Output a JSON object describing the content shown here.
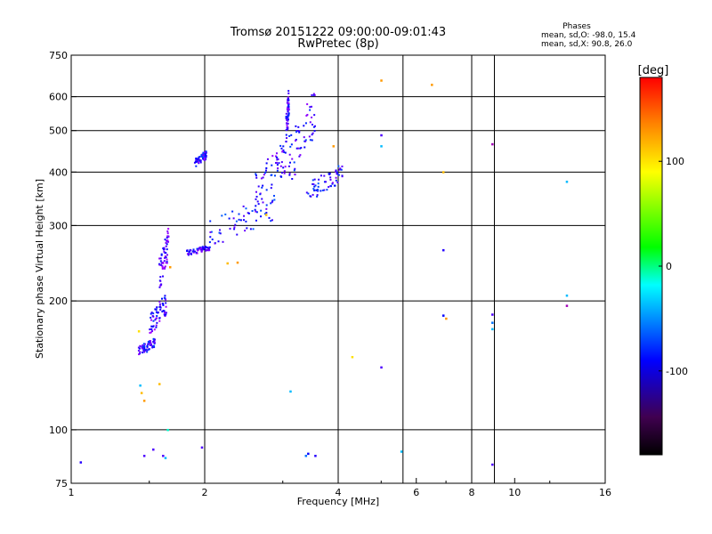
{
  "chart_data": {
    "type": "scatter",
    "title": "Tromsø 20151222 09:00:00-09:01:43",
    "subtitle": "RwPretec (8p)",
    "xlabel": "Frequency [MHz]",
    "ylabel": "Stationary phase Virtual Height [km]",
    "x_scale": "log2",
    "y_scale": "log",
    "xlim": [
      1,
      16
    ],
    "ylim": [
      75,
      750
    ],
    "x_ticks": [
      1,
      2,
      4,
      6,
      8,
      10,
      16
    ],
    "x_tick_labels": [
      "1",
      "2",
      "4",
      "6",
      "8",
      "10",
      "16"
    ],
    "y_ticks": [
      75,
      100,
      200,
      300,
      400,
      500,
      600,
      750
    ],
    "y_tick_labels": [
      "75",
      "100",
      "200",
      "300",
      "400",
      "500",
      "600",
      "750"
    ],
    "x_grid": [
      2,
      4,
      5.6,
      8,
      9
    ],
    "y_grid": [
      100,
      200,
      300,
      400,
      500,
      600
    ],
    "legend": {
      "title": "Phases",
      "line1": "mean, sd,O:  -98.0, 15.4",
      "line2": "mean, sd,X:   90.8, 26.0"
    },
    "colorbar": {
      "label": "[deg]",
      "range": [
        -180,
        180
      ],
      "ticks": [
        100,
        0,
        -100
      ],
      "tick_labels": [
        "100",
        "0",
        "-100"
      ]
    },
    "traces": [
      {
        "x": [
          1.42,
          1.55
        ],
        "y": [
          148,
          165
        ],
        "phase": -100
      },
      {
        "x": [
          1.5,
          1.64
        ],
        "y": [
          165,
          210
        ],
        "phase": -105
      },
      {
        "x": [
          1.58,
          1.66
        ],
        "y": [
          210,
          300
        ],
        "phase": -110
      },
      {
        "x": [
          1.82,
          2.05
        ],
        "y": [
          255,
          270
        ],
        "phase": -105
      },
      {
        "x": [
          2.05,
          2.9
        ],
        "y": [
          265,
          360
        ],
        "phase": -90
      },
      {
        "x": [
          2.6,
          3.05
        ],
        "y": [
          330,
          480
        ],
        "phase": -100
      },
      {
        "x": [
          3.05,
          3.1
        ],
        "y": [
          460,
          640
        ],
        "phase": -105
      },
      {
        "x": [
          3.1,
          3.55
        ],
        "y": [
          370,
          640
        ],
        "phase": -100
      },
      {
        "x": [
          3.4,
          4.1
        ],
        "y": [
          340,
          420
        ],
        "phase": -95
      },
      {
        "x": [
          1.9,
          2.02
        ],
        "y": [
          410,
          450
        ],
        "phase": -100
      }
    ],
    "points": [
      {
        "x": 1.05,
        "y": 84,
        "phase": -100
      },
      {
        "x": 1.42,
        "y": 170,
        "phase": 120
      },
      {
        "x": 1.43,
        "y": 127,
        "phase": -40
      },
      {
        "x": 1.44,
        "y": 122,
        "phase": 130
      },
      {
        "x": 1.46,
        "y": 117,
        "phase": 140
      },
      {
        "x": 1.46,
        "y": 87,
        "phase": -110
      },
      {
        "x": 1.53,
        "y": 90,
        "phase": -110
      },
      {
        "x": 1.58,
        "y": 128,
        "phase": 130
      },
      {
        "x": 1.61,
        "y": 87,
        "phase": -110
      },
      {
        "x": 1.63,
        "y": 86,
        "phase": -40
      },
      {
        "x": 1.65,
        "y": 100,
        "phase": -10
      },
      {
        "x": 1.67,
        "y": 240,
        "phase": 140
      },
      {
        "x": 1.97,
        "y": 91,
        "phase": -110
      },
      {
        "x": 2.25,
        "y": 245,
        "phase": 130
      },
      {
        "x": 2.37,
        "y": 246,
        "phase": 140
      },
      {
        "x": 2.75,
        "y": 318,
        "phase": 130
      },
      {
        "x": 3.12,
        "y": 123,
        "phase": -40
      },
      {
        "x": 3.38,
        "y": 87,
        "phase": -60
      },
      {
        "x": 3.42,
        "y": 88,
        "phase": -90
      },
      {
        "x": 3.55,
        "y": 87,
        "phase": -100
      },
      {
        "x": 3.9,
        "y": 460,
        "phase": 140
      },
      {
        "x": 4.3,
        "y": 148,
        "phase": 120
      },
      {
        "x": 5.0,
        "y": 655,
        "phase": 140
      },
      {
        "x": 5.0,
        "y": 488,
        "phase": -110
      },
      {
        "x": 5.0,
        "y": 460,
        "phase": -40
      },
      {
        "x": 5.0,
        "y": 140,
        "phase": -110
      },
      {
        "x": 5.55,
        "y": 89,
        "phase": -40
      },
      {
        "x": 6.5,
        "y": 640,
        "phase": 140
      },
      {
        "x": 6.9,
        "y": 400,
        "phase": 130
      },
      {
        "x": 6.9,
        "y": 263,
        "phase": -100
      },
      {
        "x": 6.9,
        "y": 185,
        "phase": -90
      },
      {
        "x": 7.0,
        "y": 182,
        "phase": 140
      },
      {
        "x": 8.9,
        "y": 465,
        "phase": -150
      },
      {
        "x": 8.9,
        "y": 186,
        "phase": -110
      },
      {
        "x": 8.9,
        "y": 178,
        "phase": -60
      },
      {
        "x": 8.9,
        "y": 172,
        "phase": -40
      },
      {
        "x": 8.9,
        "y": 83,
        "phase": -110
      },
      {
        "x": 13.1,
        "y": 380,
        "phase": -40
      },
      {
        "x": 13.1,
        "y": 206,
        "phase": -40
      },
      {
        "x": 13.1,
        "y": 195,
        "phase": -150
      }
    ]
  }
}
